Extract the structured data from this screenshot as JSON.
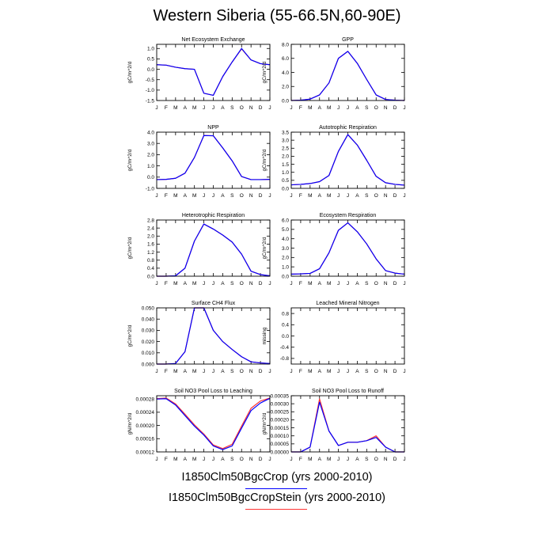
{
  "title": "Western Siberia (55-66.5N,60-90E)",
  "colors": {
    "series1": "#0000ff",
    "series2": "#ff3333",
    "axis": "#000000"
  },
  "legend": [
    {
      "label": "I1850Clm50BgcCrop (yrs 2000-2010)",
      "color": "#0000ff"
    },
    {
      "label": "I1850Clm50BgcCropStein (yrs 2000-2010)",
      "color": "#ff3333"
    }
  ],
  "chart_data": [
    {
      "type": "line",
      "title": "Net Ecosystem Exchange",
      "ylabel": "gC/m^2/d",
      "categories": [
        "J",
        "F",
        "M",
        "A",
        "M",
        "J",
        "J",
        "A",
        "S",
        "O",
        "N",
        "D",
        "J"
      ],
      "ylim": [
        -1.5,
        1.2
      ],
      "yticks": [
        {
          "v": 1.0,
          "label": "1.0"
        },
        {
          "v": 0.5,
          "label": "0.5"
        },
        {
          "v": 0,
          "label": "0.0"
        },
        {
          "v": -0.5,
          "label": "-0.5"
        },
        {
          "v": -1.0,
          "label": "-1.0"
        },
        {
          "v": -1.5,
          "label": "-1.5"
        }
      ],
      "series": [
        {
          "values": [
            0.22,
            0.2,
            0.1,
            0.03,
            0.0,
            -1.15,
            -1.25,
            -0.35,
            0.35,
            1.0,
            0.45,
            0.27,
            0.22
          ]
        },
        {
          "values": [
            0.22,
            0.2,
            0.1,
            0.03,
            0.0,
            -1.15,
            -1.25,
            -0.35,
            0.35,
            0.98,
            0.45,
            0.27,
            0.22
          ]
        }
      ]
    },
    {
      "type": "line",
      "title": "GPP",
      "ylabel": "gC/m^2/d",
      "categories": [
        "J",
        "F",
        "M",
        "A",
        "M",
        "J",
        "J",
        "A",
        "S",
        "O",
        "N",
        "D",
        "J"
      ],
      "ylim": [
        0,
        8
      ],
      "yticks": [
        {
          "v": 8,
          "label": "8.0"
        },
        {
          "v": 6,
          "label": "6.0"
        },
        {
          "v": 4,
          "label": "4.0"
        },
        {
          "v": 2,
          "label": "2.0"
        },
        {
          "v": 0,
          "label": "0.0"
        }
      ],
      "series": [
        {
          "values": [
            0.0,
            0.05,
            0.2,
            0.8,
            2.5,
            6.0,
            7.0,
            5.3,
            3.0,
            0.8,
            0.15,
            0.05,
            0.0
          ]
        },
        {
          "values": [
            0.0,
            0.05,
            0.2,
            0.8,
            2.5,
            6.0,
            7.0,
            5.3,
            3.0,
            0.8,
            0.15,
            0.05,
            0.0
          ]
        }
      ]
    },
    {
      "type": "line",
      "title": "NPP",
      "ylabel": "gC/m^2/d",
      "categories": [
        "J",
        "F",
        "M",
        "A",
        "M",
        "J",
        "J",
        "A",
        "S",
        "O",
        "N",
        "D",
        "J"
      ],
      "ylim": [
        -1.0,
        4.0
      ],
      "yticks": [
        {
          "v": 4,
          "label": "4.0"
        },
        {
          "v": 3,
          "label": "3.0"
        },
        {
          "v": 2,
          "label": "2.0"
        },
        {
          "v": 1,
          "label": "1.0"
        },
        {
          "v": 0,
          "label": "0.0"
        },
        {
          "v": -1,
          "label": "-1.0"
        }
      ],
      "series": [
        {
          "values": [
            -0.22,
            -0.2,
            -0.1,
            0.35,
            1.75,
            3.7,
            3.68,
            2.6,
            1.45,
            0.05,
            -0.22,
            -0.22,
            -0.2
          ]
        },
        {
          "values": [
            -0.22,
            -0.2,
            -0.1,
            0.35,
            1.75,
            3.7,
            3.68,
            2.6,
            1.45,
            0.05,
            -0.22,
            -0.22,
            -0.2
          ]
        }
      ]
    },
    {
      "type": "line",
      "title": "Autotrophic Respiration",
      "ylabel": "gC/m^2/d",
      "categories": [
        "J",
        "F",
        "M",
        "A",
        "M",
        "J",
        "J",
        "A",
        "S",
        "O",
        "N",
        "D",
        "J"
      ],
      "ylim": [
        0,
        3.5
      ],
      "yticks": [
        {
          "v": 3.5,
          "label": "3.5"
        },
        {
          "v": 3.0,
          "label": "3.0"
        },
        {
          "v": 2.5,
          "label": "2.5"
        },
        {
          "v": 2.0,
          "label": "2.0"
        },
        {
          "v": 1.5,
          "label": "1.5"
        },
        {
          "v": 1.0,
          "label": "1.0"
        },
        {
          "v": 0.5,
          "label": "0.5"
        },
        {
          "v": 0,
          "label": "0.0"
        }
      ],
      "series": [
        {
          "values": [
            0.22,
            0.25,
            0.3,
            0.42,
            0.8,
            2.3,
            3.35,
            2.7,
            1.75,
            0.75,
            0.35,
            0.25,
            0.2
          ]
        },
        {
          "values": [
            0.22,
            0.25,
            0.3,
            0.42,
            0.8,
            2.3,
            3.35,
            2.7,
            1.75,
            0.75,
            0.35,
            0.25,
            0.2
          ]
        }
      ]
    },
    {
      "type": "line",
      "title": "Heterotrophic Respiration",
      "ylabel": "gC/m^2/d",
      "categories": [
        "J",
        "F",
        "M",
        "A",
        "M",
        "J",
        "J",
        "A",
        "S",
        "O",
        "N",
        "D",
        "J"
      ],
      "ylim": [
        0,
        2.8
      ],
      "yticks": [
        {
          "v": 2.8,
          "label": "2.8"
        },
        {
          "v": 2.4,
          "label": "2.4"
        },
        {
          "v": 2.0,
          "label": "2.0"
        },
        {
          "v": 1.6,
          "label": "1.6"
        },
        {
          "v": 1.2,
          "label": "1.2"
        },
        {
          "v": 0.8,
          "label": "0.8"
        },
        {
          "v": 0.4,
          "label": "0.4"
        },
        {
          "v": 0,
          "label": "0.0"
        }
      ],
      "series": [
        {
          "values": [
            0.0,
            0.0,
            0.02,
            0.4,
            1.75,
            2.6,
            2.35,
            2.05,
            1.7,
            1.1,
            0.25,
            0.08,
            0.02
          ]
        },
        {
          "values": [
            0.0,
            0.0,
            0.02,
            0.4,
            1.75,
            2.6,
            2.35,
            2.05,
            1.7,
            1.1,
            0.25,
            0.08,
            0.02
          ]
        }
      ]
    },
    {
      "type": "line",
      "title": "Ecosystem Respiration",
      "ylabel": "gC/m^2/d",
      "categories": [
        "J",
        "F",
        "M",
        "A",
        "M",
        "J",
        "J",
        "A",
        "S",
        "O",
        "N",
        "D",
        "J"
      ],
      "ylim": [
        0,
        6.0
      ],
      "yticks": [
        {
          "v": 6,
          "label": "6.0"
        },
        {
          "v": 5,
          "label": "5.0"
        },
        {
          "v": 4,
          "label": "4.0"
        },
        {
          "v": 3,
          "label": "3.0"
        },
        {
          "v": 2,
          "label": "2.0"
        },
        {
          "v": 1,
          "label": "1.0"
        },
        {
          "v": 0,
          "label": "0.0"
        }
      ],
      "series": [
        {
          "values": [
            0.22,
            0.25,
            0.3,
            0.8,
            2.5,
            4.9,
            5.7,
            4.75,
            3.45,
            1.85,
            0.6,
            0.33,
            0.22
          ]
        },
        {
          "values": [
            0.22,
            0.25,
            0.3,
            0.8,
            2.5,
            4.9,
            5.7,
            4.75,
            3.45,
            1.85,
            0.6,
            0.33,
            0.22
          ]
        }
      ]
    },
    {
      "type": "line",
      "title": "Surface CH4 Flux",
      "ylabel": "gC/m^2/d",
      "categories": [
        "J",
        "F",
        "M",
        "A",
        "M",
        "J",
        "J",
        "A",
        "S",
        "O",
        "N",
        "D",
        "J"
      ],
      "ylim": [
        0,
        0.05
      ],
      "yticks": [
        {
          "v": 0.05,
          "label": "0.050"
        },
        {
          "v": 0.04,
          "label": "0.040"
        },
        {
          "v": 0.03,
          "label": "0.030"
        },
        {
          "v": 0.02,
          "label": "0.020"
        },
        {
          "v": 0.01,
          "label": "0.010"
        },
        {
          "v": 0,
          "label": "0.000"
        }
      ],
      "series": [
        {
          "values": [
            0.0,
            0.0,
            0.0005,
            0.011,
            0.05,
            0.05,
            0.03,
            0.02,
            0.013,
            0.0065,
            0.002,
            0.001,
            0.0005
          ]
        },
        {
          "values": [
            0.0,
            0.0,
            0.0005,
            0.011,
            0.05,
            0.05,
            0.03,
            0.02,
            0.013,
            0.0065,
            0.002,
            0.001,
            0.0005
          ]
        }
      ]
    },
    {
      "type": "line",
      "title": "Leached Mineral Nitrogen",
      "ylabel": "missing",
      "categories": [
        "J",
        "F",
        "M",
        "A",
        "M",
        "J",
        "J",
        "A",
        "S",
        "O",
        "N",
        "D",
        "J"
      ],
      "ylim": [
        -1.0,
        1.0
      ],
      "yticks": [
        {
          "v": 0.8,
          "label": "0.8"
        },
        {
          "v": 0.4,
          "label": "0.4"
        },
        {
          "v": 0,
          "label": "0.0"
        },
        {
          "v": -0.4,
          "label": "-0.4"
        },
        {
          "v": -0.8,
          "label": "-0.8"
        }
      ],
      "series": []
    },
    {
      "type": "line",
      "title": "Soil NO3 Pool Loss to Leaching",
      "ylabel": "gN/m^2/d",
      "categories": [
        "J",
        "F",
        "M",
        "A",
        "M",
        "J",
        "J",
        "A",
        "S",
        "O",
        "N",
        "D",
        "J"
      ],
      "ylim": [
        0.00012,
        0.00029
      ],
      "yticks": [
        {
          "v": 0.00028,
          "label": "0.00028"
        },
        {
          "v": 0.00024,
          "label": "0.00024"
        },
        {
          "v": 0.0002,
          "label": "0.00020"
        },
        {
          "v": 0.00016,
          "label": "0.00016"
        },
        {
          "v": 0.00012,
          "label": "0.00012"
        }
      ],
      "series": [
        {
          "values": [
            0.00028,
            0.000281,
            0.000262,
            0.00023,
            0.000198,
            0.000171,
            0.000138,
            0.000127,
            0.000138,
            0.000192,
            0.000245,
            0.000268,
            0.000282
          ]
        },
        {
          "values": [
            0.000281,
            0.000283,
            0.000265,
            0.000234,
            0.000202,
            0.000174,
            0.000141,
            0.00013,
            0.000143,
            0.000198,
            0.000252,
            0.000274,
            0.000283
          ]
        }
      ]
    },
    {
      "type": "line",
      "title": "Soil NO3 Pool Loss to Runoff",
      "ylabel": "gN/m^2/d",
      "categories": [
        "J",
        "F",
        "M",
        "A",
        "M",
        "J",
        "J",
        "A",
        "S",
        "O",
        "N",
        "D",
        "J"
      ],
      "ylim": [
        0,
        0.00035
      ],
      "yticks": [
        {
          "v": 0.00035,
          "label": "0.00035"
        },
        {
          "v": 0.0003,
          "label": "0.00030"
        },
        {
          "v": 0.00025,
          "label": "0.00025"
        },
        {
          "v": 0.0002,
          "label": "0.00020"
        },
        {
          "v": 0.00015,
          "label": "0.00015"
        },
        {
          "v": 0.0001,
          "label": "0.00010"
        },
        {
          "v": 5e-05,
          "label": "0.00005"
        },
        {
          "v": 0,
          "label": "0.00000"
        }
      ],
      "series": [
        {
          "values": [
            0.0,
            0.0,
            3e-05,
            0.00031,
            0.00013,
            4e-05,
            6e-05,
            6e-05,
            7e-05,
            9e-05,
            3e-05,
            0.0,
            0.0
          ]
        },
        {
          "values": [
            0.0,
            0.0,
            3e-05,
            0.00033,
            0.00013,
            4e-05,
            6e-05,
            6e-05,
            7e-05,
            0.0001,
            3e-05,
            0.0,
            0.0
          ]
        }
      ]
    }
  ]
}
